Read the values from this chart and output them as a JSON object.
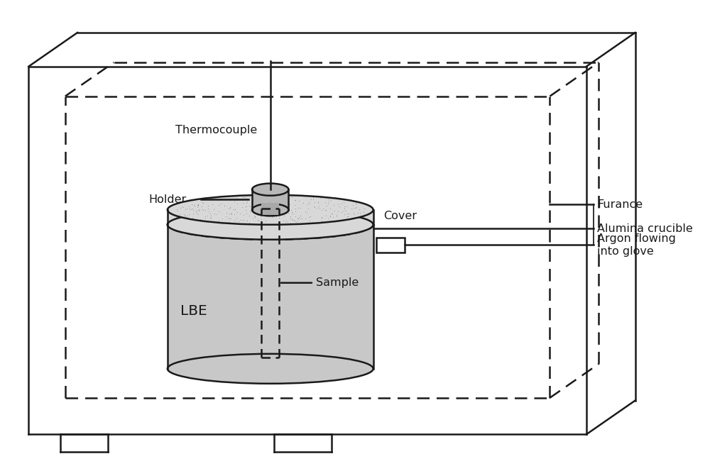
{
  "bg_color": "#ffffff",
  "line_color": "#1a1a1a",
  "dash_color": "#1a1a1a",
  "fill_crucible": "#c8c8c8",
  "fill_cover_stipple": "#c8c8c8",
  "fill_holder": "#b8b8b8",
  "fill_sample_rod": "#a8a8a8",
  "labels": {
    "thermocouple": "Thermocouple",
    "holder": "Holder",
    "cover": "Cover",
    "sample": "Sample",
    "lbe": "LBE",
    "furnace": "Furance",
    "crucible": "Alumina crucible",
    "argon": "Argon flowing\ninto glove"
  },
  "figsize": [
    10.0,
    6.64
  ],
  "dpi": 100
}
